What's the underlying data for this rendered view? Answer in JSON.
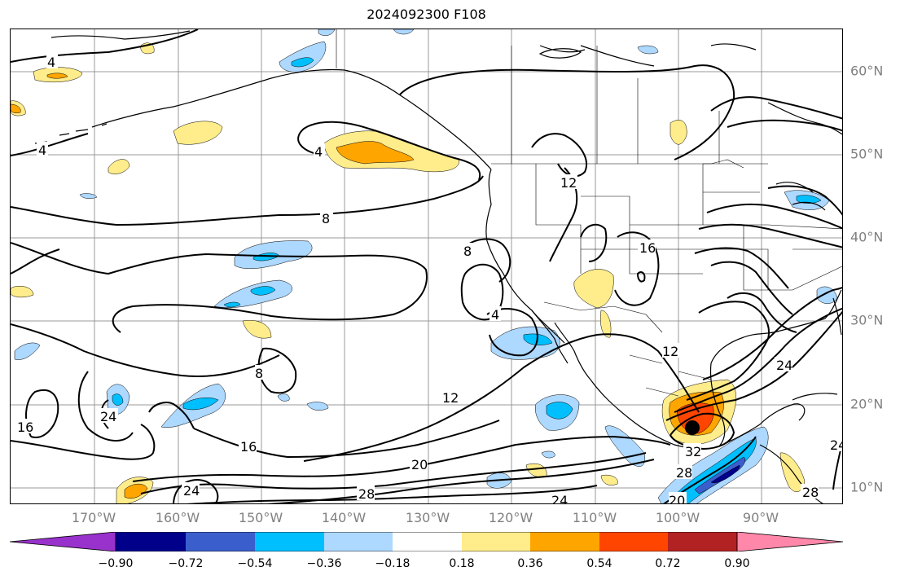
{
  "title": "2024092300 F108",
  "lon_labels": [
    "170°W",
    "160°W",
    "150°W",
    "140°W",
    "130°W",
    "120°W",
    "110°W",
    "100°W",
    "90°W"
  ],
  "lat_labels": [
    "60°N",
    "50°N",
    "40°N",
    "30°N",
    "20°N",
    "10°N"
  ],
  "contour_labels": [
    {
      "name": "c4a",
      "text": "4"
    },
    {
      "name": "c4b",
      "text": "4"
    },
    {
      "name": "c4c",
      "text": "4"
    },
    {
      "name": "c4d",
      "text": "4"
    },
    {
      "name": "c8a",
      "text": "8"
    },
    {
      "name": "c8b",
      "text": "8"
    },
    {
      "name": "c8c",
      "text": "8"
    },
    {
      "name": "c12a",
      "text": "12"
    },
    {
      "name": "c12b",
      "text": "12"
    },
    {
      "name": "c12c",
      "text": "12"
    },
    {
      "name": "c16a",
      "text": "16"
    },
    {
      "name": "c16b",
      "text": "16"
    },
    {
      "name": "c16c",
      "text": "16"
    },
    {
      "name": "c20a",
      "text": "20"
    },
    {
      "name": "c20b",
      "text": "20"
    },
    {
      "name": "c24a",
      "text": "24"
    },
    {
      "name": "c24b",
      "text": "24"
    },
    {
      "name": "c24c",
      "text": "24"
    },
    {
      "name": "c24d",
      "text": "24"
    },
    {
      "name": "c24e",
      "text": "24"
    },
    {
      "name": "c28a",
      "text": "28"
    },
    {
      "name": "c28b",
      "text": "28"
    },
    {
      "name": "c28c",
      "text": "28"
    },
    {
      "name": "c32a",
      "text": "32"
    }
  ],
  "colorbar": {
    "ticks": [
      "−0.90",
      "−0.72",
      "−0.54",
      "−0.36",
      "−0.18",
      "0.18",
      "0.36",
      "0.54",
      "0.72",
      "0.90"
    ],
    "colors": [
      "#9932cc",
      "#00008b",
      "#3a5fcd",
      "#00bfff",
      "#add8ff",
      "#ffffff",
      "#ffec8b",
      "#ffa500",
      "#ff4500",
      "#b22222",
      "#ff88aa"
    ]
  },
  "colors": {
    "contour": "#000000",
    "grid": "#808080",
    "coast": "#000000",
    "pos1": "#ffec8b",
    "pos2": "#ffa500",
    "pos3": "#ff4500",
    "neg1": "#add8ff",
    "neg2": "#00bfff",
    "neg3": "#3a5fcd",
    "neg4": "#00008b"
  },
  "storm_marker": "black-dot"
}
